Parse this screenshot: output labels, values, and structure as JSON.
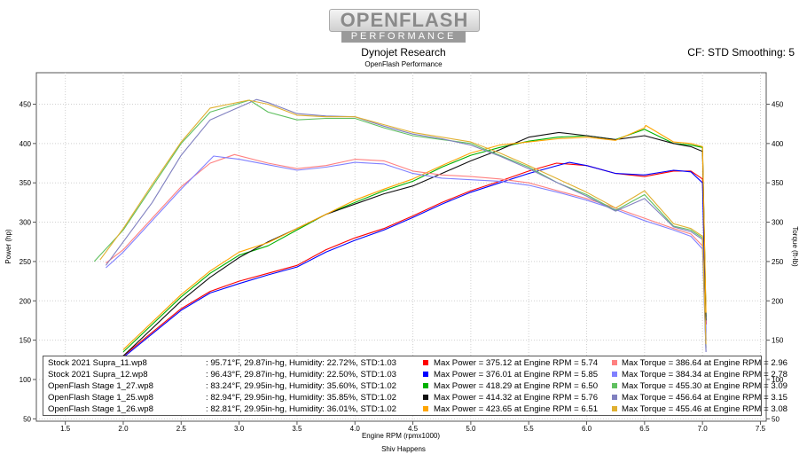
{
  "logo": {
    "line1": "OPENFLASH",
    "line2": "PERFORMANCE"
  },
  "header": {
    "title": "Dynojet Research",
    "subtitle": "OpenFlash Performance",
    "cf_info": "CF: STD Smoothing: 5"
  },
  "footer": "Shiv Happens",
  "legend": [
    {
      "name": "Stock 2021 Supra_11.wp8",
      "conditions": ": 95.71°F, 29.87in-hg, Humidity: 22.72%, STD:1.03",
      "max_power": "Max Power = 375.12 at Engine RPM = 5.74",
      "max_torque": "Max Torque = 386.64 at Engine RPM = 2.96"
    },
    {
      "name": "Stock 2021 Supra_12.wp8",
      "conditions": ": 96.43°F, 29.87in-hg, Humidity: 22.50%, STD:1.03",
      "max_power": "Max Power = 376.01 at Engine RPM = 5.85",
      "max_torque": "Max Torque = 384.34 at Engine RPM = 2.78"
    },
    {
      "name": "OpenFlash Stage 1_27.wp8",
      "conditions": ": 83.24°F, 29.95in-hg, Humidity: 35.60%, STD:1.02",
      "max_power": "Max Power = 418.29 at Engine RPM = 6.50",
      "max_torque": "Max Torque = 455.30 at Engine RPM = 3.09"
    },
    {
      "name": "OpenFlash Stage 1_25.wp8",
      "conditions": ": 82.94°F, 29.95in-hg, Humidity: 35.85%, STD:1.02",
      "max_power": "Max Power = 414.32 at Engine RPM = 5.76",
      "max_torque": "Max Torque = 456.64 at Engine RPM = 3.15"
    },
    {
      "name": "OpenFlash Stage 1_26.wp8",
      "conditions": ": 82.81°F, 29.95in-hg, Humidity: 36.01%, STD:1.02",
      "max_power": "Max Power = 423.65 at Engine RPM = 6.51",
      "max_torque": "Max Torque = 455.46 at Engine RPM = 3.08"
    }
  ],
  "chart_data": {
    "type": "line",
    "xlabel": "Engine RPM (rpmx1000)",
    "ylabel_left": "Power (hp)",
    "ylabel_right": "Torque (ft-lb)",
    "xlim": [
      1.25,
      7.55
    ],
    "ylim": [
      47,
      490
    ],
    "xticks": [
      "1.5",
      "2.0",
      "2.5",
      "3.0",
      "3.5",
      "4.0",
      "4.5",
      "5.0",
      "5.5",
      "6.0",
      "6.5",
      "7.0",
      "7.5"
    ],
    "yticks": [
      "50",
      "100",
      "150",
      "200",
      "250",
      "300",
      "350",
      "400",
      "450"
    ],
    "grid": true,
    "series": [
      {
        "name": "Stock 2021 Supra_11.wp8",
        "color": "#ff0000",
        "kind": "power",
        "x": [
          2.0,
          2.5,
          2.75,
          3.0,
          3.25,
          3.5,
          3.75,
          4.0,
          4.25,
          4.5,
          4.75,
          5.0,
          5.25,
          5.5,
          5.74,
          6.0,
          6.25,
          6.5,
          6.75,
          6.9,
          7.0,
          7.03
        ],
        "y": [
          130,
          190,
          212,
          225,
          235,
          245,
          265,
          280,
          292,
          308,
          325,
          340,
          352,
          365,
          375,
          372,
          362,
          358,
          365,
          365,
          355,
          170
        ]
      },
      {
        "name": "Stock 2021 Supra_12.wp8",
        "color": "#0000ff",
        "kind": "power",
        "x": [
          2.0,
          2.5,
          2.75,
          3.0,
          3.25,
          3.5,
          3.75,
          4.0,
          4.25,
          4.5,
          4.75,
          5.0,
          5.25,
          5.5,
          5.85,
          6.0,
          6.25,
          6.5,
          6.75,
          6.9,
          7.0,
          7.03
        ],
        "y": [
          128,
          188,
          210,
          222,
          233,
          243,
          262,
          277,
          290,
          306,
          323,
          338,
          350,
          362,
          376,
          372,
          362,
          360,
          366,
          364,
          350,
          150
        ]
      },
      {
        "name": "OpenFlash Stage 1_27.wp8",
        "color": "#00b000",
        "kind": "power",
        "x": [
          2.0,
          2.5,
          2.75,
          3.0,
          3.25,
          3.5,
          3.75,
          4.0,
          4.25,
          4.5,
          4.75,
          5.0,
          5.25,
          5.5,
          5.75,
          6.0,
          6.25,
          6.5,
          6.75,
          6.9,
          7.0,
          7.03
        ],
        "y": [
          135,
          205,
          235,
          258,
          270,
          290,
          310,
          325,
          340,
          352,
          370,
          385,
          395,
          403,
          408,
          410,
          405,
          418,
          400,
          398,
          395,
          180
        ]
      },
      {
        "name": "OpenFlash Stage 1_25.wp8",
        "color": "#101010",
        "kind": "power",
        "x": [
          2.0,
          2.5,
          2.75,
          3.0,
          3.25,
          3.5,
          3.75,
          4.0,
          4.25,
          4.5,
          4.75,
          5.0,
          5.25,
          5.5,
          5.76,
          6.0,
          6.25,
          6.5,
          6.75,
          6.9,
          7.0,
          7.03
        ],
        "y": [
          130,
          200,
          230,
          255,
          275,
          292,
          310,
          323,
          336,
          346,
          362,
          378,
          392,
          408,
          414,
          410,
          405,
          410,
          400,
          396,
          390,
          175
        ]
      },
      {
        "name": "OpenFlash Stage 1_26.wp8",
        "color": "#ffa500",
        "kind": "power",
        "x": [
          2.0,
          2.5,
          2.75,
          3.0,
          3.25,
          3.5,
          3.75,
          4.0,
          4.25,
          4.5,
          4.75,
          5.0,
          5.25,
          5.5,
          5.75,
          6.0,
          6.25,
          6.5,
          6.51,
          6.75,
          6.9,
          7.0,
          7.03
        ],
        "y": [
          138,
          208,
          238,
          262,
          274,
          292,
          310,
          328,
          342,
          355,
          372,
          388,
          398,
          402,
          406,
          408,
          404,
          420,
          423,
          402,
          400,
          396,
          185
        ]
      },
      {
        "name": "Stock 2021 Supra_11.wp8",
        "color": "#ff8080",
        "kind": "torque",
        "x": [
          1.85,
          2.0,
          2.25,
          2.5,
          2.75,
          2.96,
          3.25,
          3.5,
          3.75,
          4.0,
          4.25,
          4.5,
          4.75,
          5.0,
          5.25,
          5.5,
          5.75,
          6.0,
          6.25,
          6.5,
          6.75,
          6.9,
          7.0,
          7.03
        ],
        "y": [
          248,
          265,
          305,
          345,
          375,
          386,
          375,
          368,
          372,
          380,
          378,
          365,
          360,
          358,
          355,
          350,
          340,
          330,
          318,
          305,
          292,
          285,
          270,
          140
        ]
      },
      {
        "name": "Stock 2021 Supra_12.wp8",
        "color": "#8080ff",
        "kind": "torque",
        "x": [
          1.85,
          2.0,
          2.25,
          2.5,
          2.78,
          3.0,
          3.25,
          3.5,
          3.75,
          4.0,
          4.25,
          4.5,
          4.75,
          5.0,
          5.25,
          5.5,
          5.75,
          6.0,
          6.25,
          6.5,
          6.75,
          6.9,
          7.0,
          7.03
        ],
        "y": [
          242,
          262,
          302,
          342,
          384,
          380,
          373,
          366,
          370,
          376,
          374,
          362,
          356,
          354,
          352,
          347,
          338,
          328,
          316,
          302,
          290,
          282,
          266,
          135
        ]
      },
      {
        "name": "OpenFlash Stage 1_27.wp8",
        "color": "#60c060",
        "kind": "torque",
        "x": [
          1.75,
          2.0,
          2.25,
          2.5,
          2.75,
          3.09,
          3.25,
          3.5,
          3.75,
          4.0,
          4.25,
          4.5,
          4.75,
          5.0,
          5.25,
          5.5,
          5.75,
          6.0,
          6.25,
          6.5,
          6.75,
          6.9,
          7.0,
          7.03
        ],
        "y": [
          250,
          290,
          345,
          400,
          440,
          455,
          440,
          430,
          432,
          432,
          420,
          410,
          405,
          400,
          385,
          370,
          350,
          335,
          315,
          335,
          295,
          290,
          280,
          140
        ]
      },
      {
        "name": "OpenFlash Stage 1_25.wp8",
        "color": "#8080c0",
        "kind": "torque",
        "x": [
          1.85,
          2.0,
          2.25,
          2.5,
          2.75,
          3.15,
          3.25,
          3.5,
          3.75,
          4.0,
          4.25,
          4.5,
          4.75,
          5.0,
          5.25,
          5.5,
          5.75,
          6.0,
          6.25,
          6.5,
          6.75,
          6.9,
          7.0,
          7.03
        ],
        "y": [
          245,
          275,
          325,
          385,
          430,
          456,
          452,
          438,
          435,
          434,
          422,
          412,
          406,
          398,
          384,
          368,
          350,
          333,
          314,
          330,
          294,
          288,
          278,
          135
        ]
      },
      {
        "name": "OpenFlash Stage 1_26.wp8",
        "color": "#e0b030",
        "kind": "torque",
        "x": [
          1.8,
          2.0,
          2.25,
          2.5,
          2.75,
          3.08,
          3.25,
          3.5,
          3.75,
          4.0,
          4.25,
          4.5,
          4.75,
          5.0,
          5.25,
          5.5,
          5.75,
          6.0,
          6.25,
          6.5,
          6.75,
          6.9,
          7.0,
          7.03
        ],
        "y": [
          252,
          292,
          348,
          402,
          445,
          455,
          450,
          436,
          434,
          434,
          424,
          414,
          408,
          402,
          388,
          372,
          355,
          338,
          318,
          340,
          298,
          292,
          282,
          145
        ]
      }
    ]
  }
}
